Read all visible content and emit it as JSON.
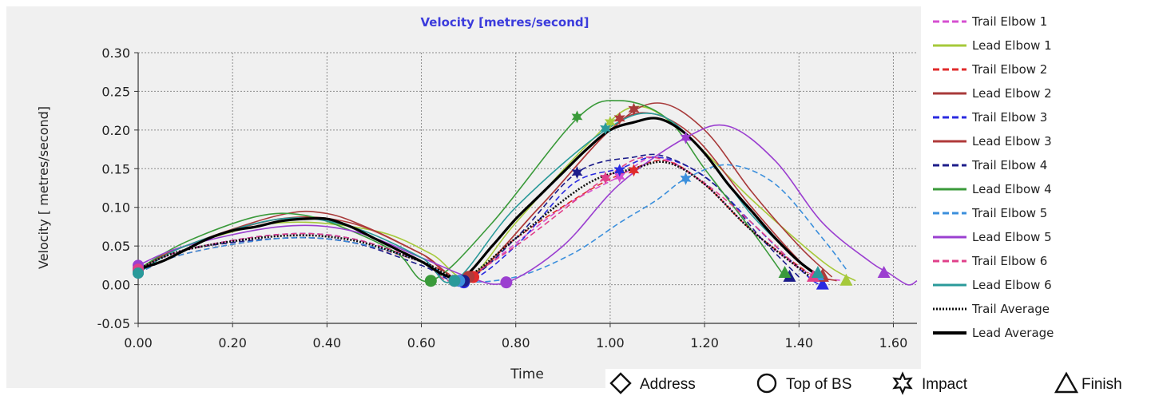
{
  "chart_data": {
    "type": "line",
    "title": "Velocity [metres/second]",
    "xlabel": "Time",
    "ylabel": "Velocity [ metres/second]",
    "xlim": [
      0.0,
      1.65
    ],
    "ylim": [
      -0.05,
      0.3
    ],
    "xticks": [
      "0.00",
      "0.20",
      "0.40",
      "0.60",
      "0.80",
      "1.00",
      "1.20",
      "1.40",
      "1.60"
    ],
    "yticks": [
      "0.30",
      "0.25",
      "0.20",
      "0.15",
      "0.10",
      "0.05",
      "0.00",
      "-0.05"
    ],
    "grid": true,
    "legend_position": "right",
    "colors": {
      "title": "#3b3bdc",
      "plot_bg": "#f0f0f0",
      "grid": "#9a9a9a"
    },
    "series": [
      {
        "name": "Trail Elbow 1",
        "color": "#d64fd0",
        "dash": "dash",
        "points": [
          [
            0.0,
            0.02
          ],
          [
            0.1,
            0.045
          ],
          [
            0.3,
            0.065
          ],
          [
            0.45,
            0.06
          ],
          [
            0.6,
            0.03
          ],
          [
            0.68,
            0.005
          ],
          [
            0.75,
            0.03
          ],
          [
            0.9,
            0.1
          ],
          [
            1.02,
            0.14
          ],
          [
            1.1,
            0.165
          ],
          [
            1.2,
            0.13
          ],
          [
            1.3,
            0.07
          ],
          [
            1.42,
            0.015
          ],
          [
            1.5,
            0.005
          ]
        ],
        "markers": {
          "address": [
            0.0,
            0.02
          ],
          "top": [
            0.68,
            0.005
          ],
          "impact": [
            1.02,
            0.14
          ],
          "finish": [
            1.45,
            0.01
          ]
        }
      },
      {
        "name": "Lead Elbow 1",
        "color": "#a6c93a",
        "dash": "solid",
        "points": [
          [
            0.0,
            0.02
          ],
          [
            0.1,
            0.05
          ],
          [
            0.3,
            0.08
          ],
          [
            0.5,
            0.07
          ],
          [
            0.62,
            0.04
          ],
          [
            0.7,
            0.01
          ],
          [
            0.8,
            0.08
          ],
          [
            0.95,
            0.18
          ],
          [
            1.05,
            0.23
          ],
          [
            1.15,
            0.2
          ],
          [
            1.3,
            0.11
          ],
          [
            1.45,
            0.03
          ],
          [
            1.52,
            0.005
          ]
        ],
        "markers": {
          "address": [
            0.0,
            0.02
          ],
          "top": [
            0.7,
            0.01
          ],
          "impact": [
            1.0,
            0.21
          ],
          "finish": [
            1.5,
            0.005
          ]
        }
      },
      {
        "name": "Trail Elbow 2",
        "color": "#e02b2b",
        "dash": "dash",
        "points": [
          [
            0.0,
            0.015
          ],
          [
            0.1,
            0.04
          ],
          [
            0.3,
            0.06
          ],
          [
            0.45,
            0.055
          ],
          [
            0.6,
            0.03
          ],
          [
            0.7,
            0.01
          ],
          [
            0.8,
            0.06
          ],
          [
            0.95,
            0.12
          ],
          [
            1.05,
            0.15
          ],
          [
            1.12,
            0.16
          ],
          [
            1.2,
            0.13
          ],
          [
            1.3,
            0.07
          ],
          [
            1.42,
            0.015
          ]
        ],
        "markers": {
          "address": [
            0.0,
            0.015
          ],
          "top": [
            0.71,
            0.01
          ],
          "impact": [
            1.05,
            0.148
          ],
          "finish": [
            1.44,
            0.012
          ]
        }
      },
      {
        "name": "Lead Elbow 2",
        "color": "#a83a3a",
        "dash": "solid",
        "points": [
          [
            0.0,
            0.02
          ],
          [
            0.1,
            0.05
          ],
          [
            0.3,
            0.09
          ],
          [
            0.4,
            0.092
          ],
          [
            0.5,
            0.07
          ],
          [
            0.6,
            0.04
          ],
          [
            0.7,
            0.01
          ],
          [
            0.85,
            0.1
          ],
          [
            1.0,
            0.2
          ],
          [
            1.1,
            0.235
          ],
          [
            1.2,
            0.2
          ],
          [
            1.3,
            0.12
          ],
          [
            1.4,
            0.05
          ],
          [
            1.47,
            0.01
          ]
        ],
        "markers": {
          "address": [
            0.0,
            0.02
          ],
          "top": [
            0.7,
            0.01
          ],
          "impact": [
            1.05,
            0.227
          ],
          "finish": [
            1.45,
            0.012
          ]
        }
      },
      {
        "name": "Trail Elbow 3",
        "color": "#2a2ae0",
        "dash": "dash",
        "points": [
          [
            0.0,
            0.02
          ],
          [
            0.1,
            0.045
          ],
          [
            0.3,
            0.065
          ],
          [
            0.45,
            0.06
          ],
          [
            0.6,
            0.03
          ],
          [
            0.69,
            0.003
          ],
          [
            0.8,
            0.05
          ],
          [
            0.92,
            0.13
          ],
          [
            1.02,
            0.15
          ],
          [
            1.1,
            0.165
          ],
          [
            1.2,
            0.14
          ],
          [
            1.3,
            0.08
          ],
          [
            1.42,
            0.01
          ],
          [
            1.45,
            0.0
          ]
        ],
        "markers": {
          "address": [
            0.0,
            0.02
          ],
          "top": [
            0.69,
            0.003
          ],
          "impact": [
            1.02,
            0.148
          ],
          "finish": [
            1.45,
            0.0
          ]
        }
      },
      {
        "name": "Lead Elbow 3",
        "color": "#b03a3a",
        "dash": "solid",
        "points": [
          [
            0.0,
            0.02
          ],
          [
            0.1,
            0.05
          ],
          [
            0.3,
            0.085
          ],
          [
            0.45,
            0.08
          ],
          [
            0.6,
            0.04
          ],
          [
            0.7,
            0.01
          ],
          [
            0.85,
            0.1
          ],
          [
            1.0,
            0.2
          ],
          [
            1.08,
            0.222
          ],
          [
            1.18,
            0.19
          ],
          [
            1.3,
            0.1
          ],
          [
            1.42,
            0.02
          ],
          [
            1.48,
            0.005
          ]
        ],
        "markers": {
          "address": [
            0.0,
            0.02
          ],
          "top": [
            0.7,
            0.01
          ],
          "impact": [
            1.02,
            0.215
          ],
          "finish": [
            1.45,
            0.01
          ]
        }
      },
      {
        "name": "Trail Elbow 4",
        "color": "#1c1c8a",
        "dash": "dash",
        "points": [
          [
            0.0,
            0.02
          ],
          [
            0.1,
            0.045
          ],
          [
            0.3,
            0.06
          ],
          [
            0.45,
            0.055
          ],
          [
            0.6,
            0.025
          ],
          [
            0.69,
            0.005
          ],
          [
            0.8,
            0.06
          ],
          [
            0.93,
            0.145
          ],
          [
            1.05,
            0.165
          ],
          [
            1.12,
            0.165
          ],
          [
            1.22,
            0.13
          ],
          [
            1.32,
            0.06
          ],
          [
            1.4,
            0.01
          ]
        ],
        "markers": {
          "address": [
            0.0,
            0.02
          ],
          "top": [
            0.69,
            0.005
          ],
          "impact": [
            0.93,
            0.145
          ],
          "finish": [
            1.38,
            0.01
          ]
        }
      },
      {
        "name": "Lead Elbow 4",
        "color": "#3a9a3a",
        "dash": "solid",
        "points": [
          [
            0.0,
            0.02
          ],
          [
            0.1,
            0.055
          ],
          [
            0.25,
            0.088
          ],
          [
            0.35,
            0.09
          ],
          [
            0.45,
            0.07
          ],
          [
            0.55,
            0.04
          ],
          [
            0.62,
            0.005
          ],
          [
            0.75,
            0.08
          ],
          [
            0.93,
            0.215
          ],
          [
            1.02,
            0.238
          ],
          [
            1.12,
            0.215
          ],
          [
            1.2,
            0.15
          ],
          [
            1.3,
            0.07
          ],
          [
            1.37,
            0.01
          ]
        ],
        "markers": {
          "address": [
            0.0,
            0.02
          ],
          "top": [
            0.62,
            0.005
          ],
          "impact": [
            0.93,
            0.217
          ],
          "finish": [
            1.37,
            0.015
          ]
        }
      },
      {
        "name": "Trail Elbow 5",
        "color": "#3b8fdc",
        "dash": "dash",
        "points": [
          [
            0.0,
            0.015
          ],
          [
            0.1,
            0.04
          ],
          [
            0.3,
            0.06
          ],
          [
            0.45,
            0.055
          ],
          [
            0.6,
            0.03
          ],
          [
            0.68,
            0.005
          ],
          [
            0.8,
            0.01
          ],
          [
            0.92,
            0.04
          ],
          [
            1.02,
            0.08
          ],
          [
            1.1,
            0.11
          ],
          [
            1.16,
            0.137
          ],
          [
            1.25,
            0.155
          ],
          [
            1.35,
            0.13
          ],
          [
            1.45,
            0.06
          ],
          [
            1.5,
            0.02
          ]
        ],
        "markers": {
          "address": [
            0.0,
            0.015
          ],
          "top": [
            0.68,
            0.005
          ],
          "impact": [
            1.16,
            0.137
          ],
          "finish": [
            1.44,
            0.012
          ]
        }
      },
      {
        "name": "Lead Elbow 5",
        "color": "#9b3fd0",
        "dash": "solid",
        "points": [
          [
            0.0,
            0.025
          ],
          [
            0.1,
            0.05
          ],
          [
            0.3,
            0.075
          ],
          [
            0.45,
            0.07
          ],
          [
            0.6,
            0.035
          ],
          [
            0.7,
            0.01
          ],
          [
            0.78,
            0.003
          ],
          [
            0.9,
            0.05
          ],
          [
            1.02,
            0.13
          ],
          [
            1.16,
            0.19
          ],
          [
            1.25,
            0.205
          ],
          [
            1.35,
            0.16
          ],
          [
            1.45,
            0.08
          ],
          [
            1.55,
            0.03
          ],
          [
            1.59,
            0.015
          ],
          [
            1.63,
            0.0
          ],
          [
            1.65,
            0.005
          ]
        ],
        "markers": {
          "address": [
            0.0,
            0.025
          ],
          "top": [
            0.78,
            0.003
          ],
          "impact": [
            1.16,
            0.19
          ],
          "finish": [
            1.58,
            0.015
          ]
        }
      },
      {
        "name": "Trail Elbow 6",
        "color": "#e0408a",
        "dash": "dash",
        "points": [
          [
            0.0,
            0.02
          ],
          [
            0.1,
            0.045
          ],
          [
            0.3,
            0.065
          ],
          [
            0.45,
            0.06
          ],
          [
            0.6,
            0.03
          ],
          [
            0.67,
            0.005
          ],
          [
            0.8,
            0.05
          ],
          [
            0.99,
            0.138
          ],
          [
            1.08,
            0.165
          ],
          [
            1.18,
            0.14
          ],
          [
            1.3,
            0.08
          ],
          [
            1.4,
            0.02
          ]
        ],
        "markers": {
          "address": [
            0.0,
            0.02
          ],
          "top": [
            0.67,
            0.005
          ],
          "impact": [
            0.99,
            0.138
          ],
          "finish": [
            1.43,
            0.01
          ]
        }
      },
      {
        "name": "Lead Elbow 6",
        "color": "#2a9a9a",
        "dash": "solid",
        "points": [
          [
            0.0,
            0.015
          ],
          [
            0.1,
            0.05
          ],
          [
            0.3,
            0.085
          ],
          [
            0.45,
            0.075
          ],
          [
            0.6,
            0.035
          ],
          [
            0.67,
            0.005
          ],
          [
            0.8,
            0.1
          ],
          [
            0.99,
            0.2
          ],
          [
            1.1,
            0.22
          ],
          [
            1.2,
            0.17
          ],
          [
            1.3,
            0.09
          ],
          [
            1.4,
            0.03
          ],
          [
            1.44,
            0.01
          ]
        ],
        "markers": {
          "address": [
            0.0,
            0.015
          ],
          "top": [
            0.67,
            0.005
          ],
          "impact": [
            0.99,
            0.202
          ],
          "finish": [
            1.44,
            0.015
          ]
        }
      },
      {
        "name": "Trail Average",
        "color": "#111111",
        "dash": "dot",
        "points": [
          [
            0.0,
            0.02
          ],
          [
            0.1,
            0.045
          ],
          [
            0.3,
            0.063
          ],
          [
            0.45,
            0.058
          ],
          [
            0.6,
            0.03
          ],
          [
            0.69,
            0.01
          ],
          [
            0.8,
            0.06
          ],
          [
            0.95,
            0.13
          ],
          [
            1.05,
            0.15
          ],
          [
            1.12,
            0.158
          ],
          [
            1.2,
            0.13
          ],
          [
            1.3,
            0.07
          ],
          [
            1.42,
            0.012
          ]
        ],
        "markers": {}
      },
      {
        "name": "Lead Average",
        "color": "#000000",
        "dash": "solid",
        "points": [
          [
            0.0,
            0.02
          ],
          [
            0.05,
            0.03
          ],
          [
            0.1,
            0.045
          ],
          [
            0.15,
            0.06
          ],
          [
            0.2,
            0.07
          ],
          [
            0.25,
            0.075
          ],
          [
            0.3,
            0.082
          ],
          [
            0.35,
            0.085
          ],
          [
            0.4,
            0.085
          ],
          [
            0.45,
            0.075
          ],
          [
            0.5,
            0.06
          ],
          [
            0.55,
            0.045
          ],
          [
            0.6,
            0.03
          ],
          [
            0.65,
            0.012
          ],
          [
            0.69,
            0.01
          ],
          [
            0.75,
            0.05
          ],
          [
            0.8,
            0.085
          ],
          [
            0.85,
            0.115
          ],
          [
            0.9,
            0.145
          ],
          [
            0.95,
            0.175
          ],
          [
            1.0,
            0.2
          ],
          [
            1.05,
            0.21
          ],
          [
            1.1,
            0.215
          ],
          [
            1.15,
            0.2
          ],
          [
            1.2,
            0.17
          ],
          [
            1.25,
            0.13
          ],
          [
            1.3,
            0.095
          ],
          [
            1.35,
            0.06
          ],
          [
            1.4,
            0.03
          ],
          [
            1.44,
            0.012
          ]
        ],
        "markers": {}
      }
    ],
    "marker_legend": [
      {
        "symbol": "diamond",
        "label": "Address"
      },
      {
        "symbol": "circle",
        "label": "Top of BS"
      },
      {
        "symbol": "star",
        "label": "Impact"
      },
      {
        "symbol": "triangle",
        "label": "Finish"
      }
    ]
  }
}
